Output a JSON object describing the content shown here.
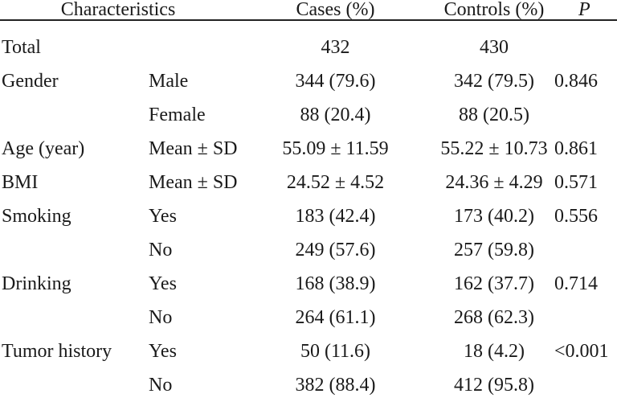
{
  "header": {
    "characteristics": "Characteristics",
    "cases": "Cases (%)",
    "controls": "Controls (%)",
    "p": "P"
  },
  "rows": [
    {
      "label": "Total",
      "sub": "",
      "cases": "432",
      "controls": "430",
      "p": ""
    },
    {
      "label": "Gender",
      "sub": "Male",
      "cases": "344 (79.6)",
      "controls": "342 (79.5)",
      "p": "0.846"
    },
    {
      "label": "",
      "sub": "Female",
      "cases": "88 (20.4)",
      "controls": "88 (20.5)",
      "p": ""
    },
    {
      "label": "Age (year)",
      "sub": "Mean ± SD",
      "cases": "55.09 ± 11.59",
      "controls": "55.22 ± 10.73",
      "p": "0.861"
    },
    {
      "label": "BMI",
      "sub": "Mean ± SD",
      "cases": "24.52 ± 4.52",
      "controls": "24.36 ± 4.29",
      "p": "0.571"
    },
    {
      "label": "Smoking",
      "sub": "Yes",
      "cases": "183 (42.4)",
      "controls": "173 (40.2)",
      "p": "0.556"
    },
    {
      "label": "",
      "sub": "No",
      "cases": "249 (57.6)",
      "controls": "257 (59.8)",
      "p": ""
    },
    {
      "label": "Drinking",
      "sub": "Yes",
      "cases": "168 (38.9)",
      "controls": "162 (37.7)",
      "p": "0.714"
    },
    {
      "label": "",
      "sub": "No",
      "cases": "264 (61.1)",
      "controls": "268 (62.3)",
      "p": ""
    },
    {
      "label": "Tumor history",
      "sub": "Yes",
      "cases": "50 (11.6)",
      "controls": "18 (4.2)",
      "p": "<0.001"
    },
    {
      "label": "",
      "sub": "No",
      "cases": "382 (88.4)",
      "controls": "412 (95.8)",
      "p": ""
    }
  ]
}
